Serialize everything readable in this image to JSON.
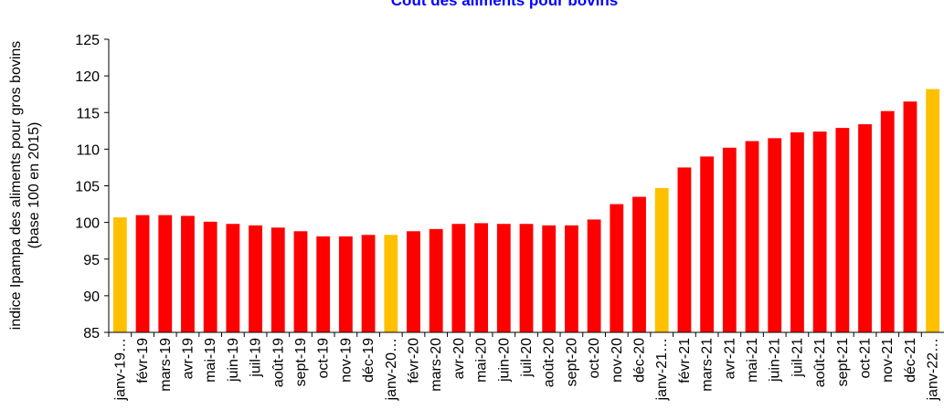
{
  "chart_data": {
    "type": "bar",
    "title": "Coût des aliments pour bovins",
    "ylabel": [
      "indice Ipampa des aliments pour gros bovins",
      "(base 100 en 2015)"
    ],
    "categories": [
      "janv-19…",
      "févr-19",
      "mars-19",
      "avr-19",
      "mai-19",
      "juin-19",
      "juil-19",
      "août-19",
      "sept-19",
      "oct-19",
      "nov-19",
      "déc-19",
      "janv-20…",
      "févr-20",
      "mars-20",
      "avr-20",
      "mai-20",
      "juin-20",
      "juil-20",
      "août-20",
      "sept-20",
      "oct-20",
      "nov-20",
      "déc-20",
      "janv-21…",
      "févr-21",
      "mars-21",
      "avr-21",
      "mai-21",
      "juin-21",
      "juil-21",
      "août-21",
      "sept-21",
      "oct-21",
      "nov-21",
      "déc-21",
      "janv-22…"
    ],
    "values": [
      100.7,
      101.0,
      101.0,
      100.9,
      100.1,
      99.8,
      99.6,
      99.3,
      98.8,
      98.1,
      98.1,
      98.3,
      98.3,
      98.8,
      99.1,
      99.8,
      99.9,
      99.8,
      99.8,
      99.6,
      99.6,
      100.4,
      102.5,
      103.5,
      104.7,
      107.5,
      109.0,
      110.2,
      111.1,
      111.5,
      112.3,
      112.4,
      112.9,
      113.4,
      115.2,
      116.5,
      118.2
    ],
    "colors": [
      "#ffc000",
      "#ff0000",
      "#ff0000",
      "#ff0000",
      "#ff0000",
      "#ff0000",
      "#ff0000",
      "#ff0000",
      "#ff0000",
      "#ff0000",
      "#ff0000",
      "#ff0000",
      "#ffc000",
      "#ff0000",
      "#ff0000",
      "#ff0000",
      "#ff0000",
      "#ff0000",
      "#ff0000",
      "#ff0000",
      "#ff0000",
      "#ff0000",
      "#ff0000",
      "#ff0000",
      "#ffc000",
      "#ff0000",
      "#ff0000",
      "#ff0000",
      "#ff0000",
      "#ff0000",
      "#ff0000",
      "#ff0000",
      "#ff0000",
      "#ff0000",
      "#ff0000",
      "#ff0000",
      "#ffc000"
    ],
    "ylim": [
      85,
      125
    ],
    "yticks": [
      85,
      90,
      95,
      100,
      105,
      110,
      115,
      120,
      125
    ],
    "grid": false
  }
}
